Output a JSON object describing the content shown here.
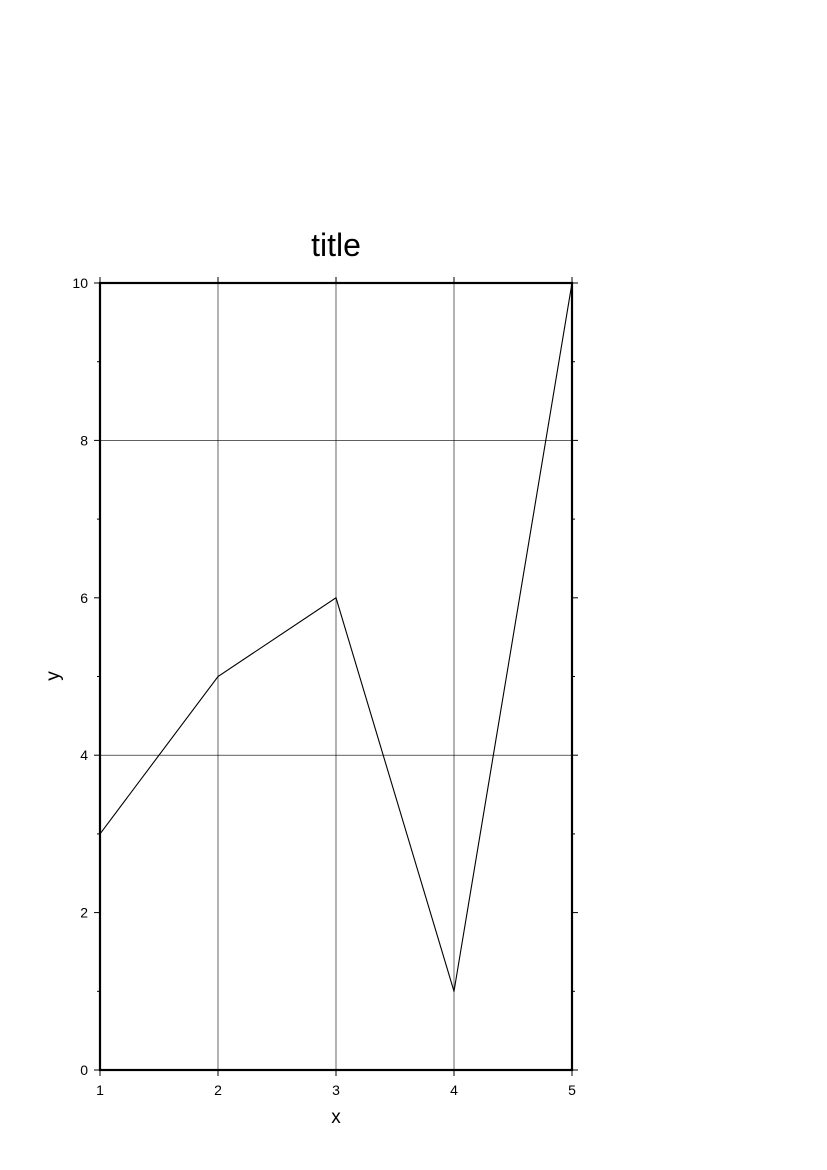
{
  "chart_data": {
    "type": "line",
    "title": "title",
    "xlabel": "x",
    "ylabel": "y",
    "xlim": [
      1,
      5
    ],
    "ylim": [
      0,
      10
    ],
    "x_ticks": [
      1,
      2,
      3,
      4,
      5
    ],
    "y_ticks": [
      0,
      2,
      4,
      6,
      8,
      10
    ],
    "y_minor_ticks": [
      1,
      3,
      5,
      7,
      9
    ],
    "x_grid": [
      2,
      3,
      4
    ],
    "y_grid": [
      4,
      8
    ],
    "grid": true,
    "series": [
      {
        "x": [
          1,
          2,
          3,
          4,
          5
        ],
        "y": [
          3,
          5,
          6,
          1,
          10
        ],
        "color": "#000000"
      }
    ],
    "colors": {
      "line": "#000000",
      "grid": "#000000",
      "frame": "#000000",
      "background": "#ffffff"
    }
  }
}
